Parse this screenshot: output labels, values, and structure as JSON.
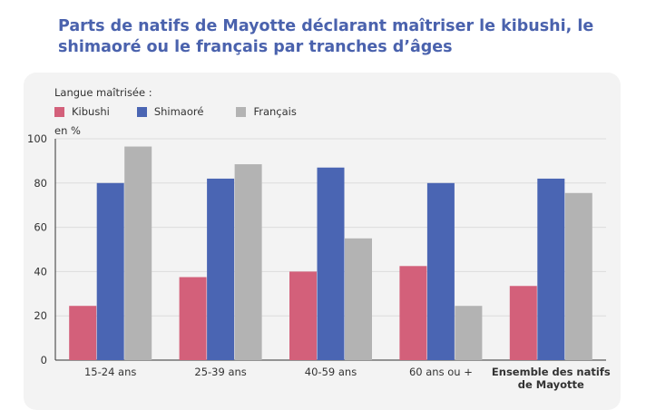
{
  "title": "Parts de natifs de Mayotte déclarant maîtriser le kibushi, le shimaoré ou le français par tranches d’âges",
  "colors": {
    "title": "#4a62ad",
    "kibushi": "#d3607a",
    "shimaore": "#4a65b3",
    "francais": "#b3b3b3",
    "panel": "#f3f3f3"
  },
  "chart_data": {
    "type": "bar",
    "legend_title": "Langue maîtrisée :",
    "unit_label": "en %",
    "categories": [
      "15-24 ans",
      "25-39 ans",
      "40-59 ans",
      "60 ans ou +",
      "Ensemble des natifs de Mayotte"
    ],
    "category_lines": [
      [
        "15-24 ans"
      ],
      [
        "25-39 ans"
      ],
      [
        "40-59 ans"
      ],
      [
        "60 ans ou +"
      ],
      [
        "Ensemble des natifs",
        "de Mayotte"
      ]
    ],
    "series": [
      {
        "name": "Kibushi",
        "values": [
          24.5,
          37.5,
          40,
          42.5,
          33.5
        ]
      },
      {
        "name": "Shimaoré",
        "values": [
          80,
          82,
          87,
          80,
          82
        ]
      },
      {
        "name": "Français",
        "values": [
          96.5,
          88.5,
          55,
          24.5,
          75.5
        ]
      }
    ],
    "ylim": [
      0,
      100
    ],
    "yticks": [
      0,
      20,
      40,
      60,
      80,
      100
    ],
    "legend_position": "top-left",
    "grid": true
  }
}
